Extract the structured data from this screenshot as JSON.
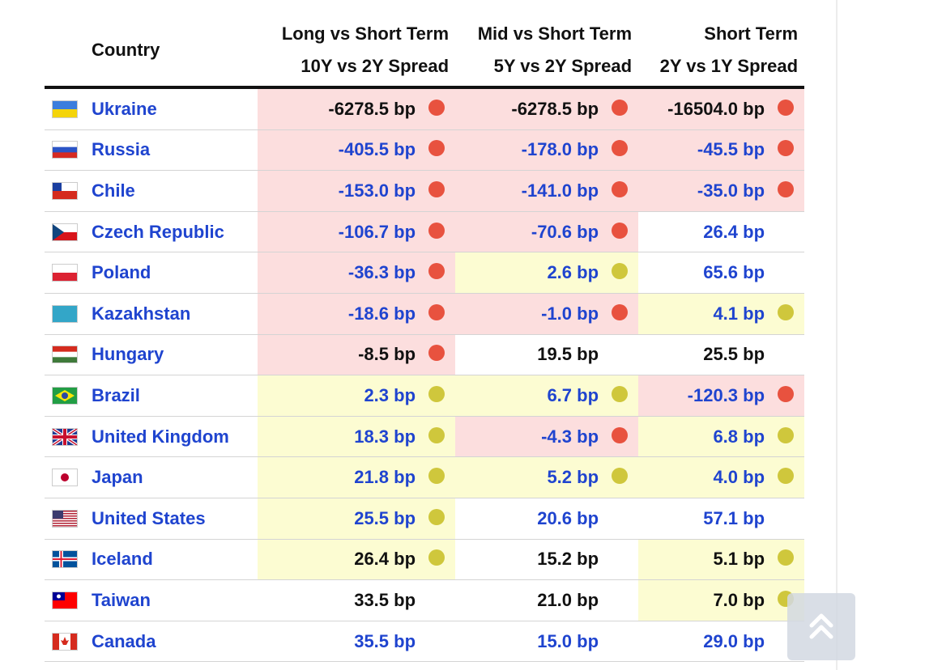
{
  "table": {
    "columns": [
      {
        "title": "Country"
      },
      {
        "title": "Long vs Short Term",
        "subtitle": "10Y vs 2Y Spread"
      },
      {
        "title": "Mid vs Short Term",
        "subtitle": "5Y vs 2Y Spread"
      },
      {
        "title": "Short Term",
        "subtitle": "2Y vs 1Y Spread"
      }
    ],
    "colors": {
      "red": {
        "fill": "#fcdede",
        "dot": "#e8523f"
      },
      "yellow": {
        "fill": "#fcfcd2",
        "dot": "#cfc73c"
      },
      "link": "#1f44cf",
      "plain": "#111111"
    },
    "rows": [
      {
        "country": "Ukraine",
        "link": false,
        "cells": [
          {
            "text": "-6278.5 bp",
            "mark": "red"
          },
          {
            "text": "-6278.5 bp",
            "mark": "red"
          },
          {
            "text": "-16504.0 bp",
            "mark": "red"
          }
        ]
      },
      {
        "country": "Russia",
        "link": true,
        "cells": [
          {
            "text": "-405.5 bp",
            "mark": "red"
          },
          {
            "text": "-178.0 bp",
            "mark": "red"
          },
          {
            "text": "-45.5 bp",
            "mark": "red"
          }
        ]
      },
      {
        "country": "Chile",
        "link": true,
        "cells": [
          {
            "text": "-153.0 bp",
            "mark": "red"
          },
          {
            "text": "-141.0 bp",
            "mark": "red"
          },
          {
            "text": "-35.0 bp",
            "mark": "red"
          }
        ]
      },
      {
        "country": "Czech Republic",
        "link": true,
        "cells": [
          {
            "text": "-106.7 bp",
            "mark": "red"
          },
          {
            "text": "-70.6 bp",
            "mark": "red"
          },
          {
            "text": "26.4 bp",
            "mark": null
          }
        ]
      },
      {
        "country": "Poland",
        "link": true,
        "cells": [
          {
            "text": "-36.3 bp",
            "mark": "red"
          },
          {
            "text": "2.6 bp",
            "mark": "yellow"
          },
          {
            "text": "65.6 bp",
            "mark": null
          }
        ]
      },
      {
        "country": "Kazakhstan",
        "link": true,
        "cells": [
          {
            "text": "-18.6 bp",
            "mark": "red"
          },
          {
            "text": "-1.0 bp",
            "mark": "red"
          },
          {
            "text": "4.1 bp",
            "mark": "yellow"
          }
        ]
      },
      {
        "country": "Hungary",
        "link": false,
        "cells": [
          {
            "text": "-8.5 bp",
            "mark": "red"
          },
          {
            "text": "19.5 bp",
            "mark": null
          },
          {
            "text": "25.5 bp",
            "mark": null
          }
        ]
      },
      {
        "country": "Brazil",
        "link": true,
        "cells": [
          {
            "text": "2.3 bp",
            "mark": "yellow"
          },
          {
            "text": "6.7 bp",
            "mark": "yellow"
          },
          {
            "text": "-120.3 bp",
            "mark": "red"
          }
        ]
      },
      {
        "country": "United Kingdom",
        "link": true,
        "cells": [
          {
            "text": "18.3 bp",
            "mark": "yellow"
          },
          {
            "text": "-4.3 bp",
            "mark": "red"
          },
          {
            "text": "6.8 bp",
            "mark": "yellow"
          }
        ]
      },
      {
        "country": "Japan",
        "link": true,
        "cells": [
          {
            "text": "21.8 bp",
            "mark": "yellow"
          },
          {
            "text": "5.2 bp",
            "mark": "yellow"
          },
          {
            "text": "4.0 bp",
            "mark": "yellow"
          }
        ]
      },
      {
        "country": "United States",
        "link": true,
        "cells": [
          {
            "text": "25.5 bp",
            "mark": "yellow"
          },
          {
            "text": "20.6 bp",
            "mark": null
          },
          {
            "text": "57.1 bp",
            "mark": null
          }
        ]
      },
      {
        "country": "Iceland",
        "link": false,
        "cells": [
          {
            "text": "26.4 bp",
            "mark": "yellow"
          },
          {
            "text": "15.2 bp",
            "mark": null
          },
          {
            "text": "5.1 bp",
            "mark": "yellow"
          }
        ]
      },
      {
        "country": "Taiwan",
        "link": false,
        "cells": [
          {
            "text": "33.5 bp",
            "mark": null
          },
          {
            "text": "21.0 bp",
            "mark": null
          },
          {
            "text": "7.0 bp",
            "mark": "yellow"
          }
        ]
      },
      {
        "country": "Canada",
        "link": true,
        "cells": [
          {
            "text": "35.5 bp",
            "mark": null
          },
          {
            "text": "15.0 bp",
            "mark": null
          },
          {
            "text": "29.0 bp",
            "mark": null
          }
        ]
      }
    ]
  }
}
